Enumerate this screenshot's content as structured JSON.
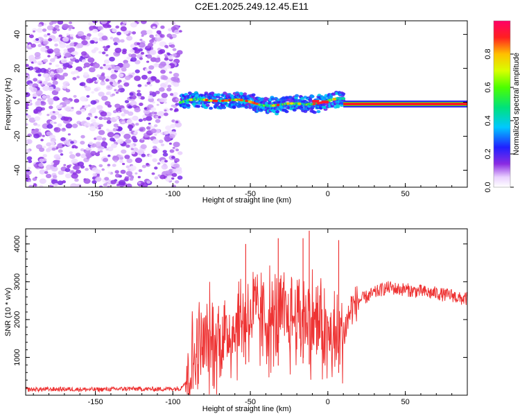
{
  "title": "C2E1.2025.249.12.45.E11",
  "chart_data": [
    {
      "type": "heatmap",
      "xlabel": "Height of straight line (km)",
      "ylabel": "Frequency (Hz)",
      "xlim": [
        -195,
        90
      ],
      "ylim": [
        -50,
        48
      ],
      "x_ticks": [
        -150,
        -100,
        -50,
        0,
        50
      ],
      "y_ticks": [
        -40,
        -20,
        0,
        20,
        40
      ],
      "colorbar": {
        "label": "Normalized spectral amplitude",
        "range": [
          0.0,
          1.0
        ],
        "ticks": [
          "0.0",
          "0.2",
          "0.4",
          "0.6",
          "0.8"
        ],
        "tick_values": [
          0.0,
          0.2,
          0.4,
          0.6,
          0.8
        ]
      },
      "regions": [
        {
          "name": "noise",
          "x": [
            -195,
            -95
          ],
          "freq": [
            -50,
            48
          ],
          "amplitude": 0.08
        },
        {
          "name": "signal-band",
          "x": [
            -95,
            10
          ],
          "freq_center": 0,
          "freq_halfwidth": 4,
          "amplitude": 0.45
        },
        {
          "name": "signal-line",
          "x": [
            10,
            90
          ],
          "freq_center": -1,
          "freq_halfwidth": 1,
          "amplitude": 0.9
        }
      ]
    },
    {
      "type": "line",
      "xlabel": "Height of straight line (km)",
      "ylabel": "SNR (10 * v/v)",
      "xlim": [
        -195,
        90
      ],
      "ylim": [
        0,
        4400
      ],
      "x_ticks": [
        -150,
        -100,
        -50,
        0,
        50
      ],
      "y_ticks": [
        1000,
        2000,
        3000,
        4000
      ],
      "color": "#ee3333",
      "series": [
        {
          "x": [
            -195,
            -170,
            -150,
            -130,
            -110,
            -95,
            -90,
            -85,
            -80,
            -75,
            -70,
            -65,
            -60,
            -55,
            -50,
            -45,
            -40,
            -35,
            -30,
            -25,
            -20,
            -15,
            -10,
            -5,
            0,
            5,
            10,
            15,
            20,
            25,
            30,
            35,
            40,
            45,
            50,
            55,
            60,
            65,
            70,
            75,
            80,
            85,
            90
          ],
          "y": [
            150,
            160,
            150,
            170,
            160,
            180,
            500,
            1100,
            1300,
            1400,
            1500,
            1600,
            1800,
            2000,
            2100,
            2100,
            2000,
            1900,
            2000,
            2000,
            2100,
            2100,
            2000,
            1900,
            1500,
            1400,
            1600,
            2300,
            2500,
            2600,
            2700,
            2800,
            2850,
            2800,
            2800,
            2750,
            2750,
            2700,
            2700,
            2650,
            2650,
            2550,
            2550
          ]
        }
      ],
      "spikes": [
        {
          "x": -53,
          "y": 4000
        },
        {
          "x": -32,
          "y": 4150
        },
        {
          "x": -16,
          "y": 4150
        },
        {
          "x": -12,
          "y": 4350
        },
        {
          "x": 7,
          "y": 4100
        }
      ]
    }
  ]
}
